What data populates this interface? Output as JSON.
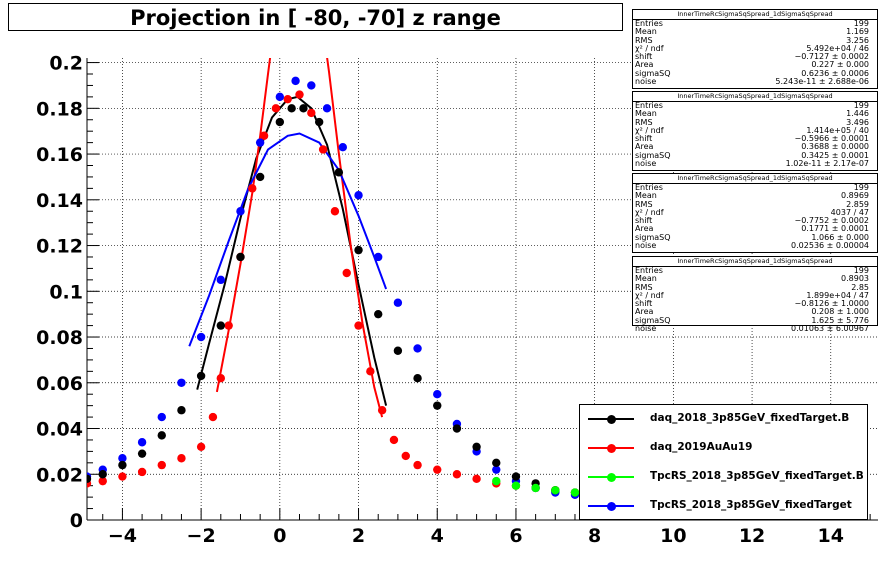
{
  "title": "Projection in [ -80, -70] z range",
  "chart_data": {
    "type": "scatter",
    "x_range": [
      -4.9,
      15.2
    ],
    "y_range": [
      0,
      0.202
    ],
    "x_ticks": [
      -4,
      -2,
      0,
      2,
      4,
      6,
      8,
      10,
      12,
      14
    ],
    "x_tick_labels": [
      "−4",
      "−2",
      "0",
      "2",
      "4",
      "6",
      "8",
      "10",
      "12",
      "14"
    ],
    "y_ticks": [
      0,
      0.02,
      0.04,
      0.06,
      0.08,
      0.1,
      0.12,
      0.14,
      0.16,
      0.18,
      0.2
    ],
    "y_tick_labels": [
      "0",
      "0.02",
      "0.04",
      "0.06",
      "0.08",
      "0.1",
      "0.12",
      "0.14",
      "0.16",
      "0.18",
      "0.2"
    ],
    "grid": true,
    "series": [
      {
        "name": "daq_2018_3p85GeV_fixedTarget.B",
        "color": "#000000",
        "points": [
          [
            -4.9,
            0.018
          ],
          [
            -4.5,
            0.02
          ],
          [
            -4.0,
            0.024
          ],
          [
            -3.5,
            0.029
          ],
          [
            -3.0,
            0.037
          ],
          [
            -2.5,
            0.048
          ],
          [
            -2.0,
            0.063
          ],
          [
            -1.5,
            0.085
          ],
          [
            -1.0,
            0.115
          ],
          [
            -0.5,
            0.15
          ],
          [
            0.0,
            0.174
          ],
          [
            0.3,
            0.18
          ],
          [
            0.6,
            0.18
          ],
          [
            1.0,
            0.174
          ],
          [
            1.5,
            0.152
          ],
          [
            2.0,
            0.118
          ],
          [
            2.5,
            0.09
          ],
          [
            3.0,
            0.074
          ],
          [
            3.5,
            0.062
          ],
          [
            4.0,
            0.05
          ],
          [
            4.5,
            0.04
          ],
          [
            5.0,
            0.032
          ],
          [
            5.5,
            0.025
          ],
          [
            6.0,
            0.019
          ],
          [
            6.5,
            0.016
          ],
          [
            7.0,
            0.013
          ],
          [
            7.5,
            0.012
          ],
          [
            8.0,
            0.011
          ],
          [
            8.5,
            0.01
          ],
          [
            9.0,
            0.009
          ]
        ],
        "fit": [
          [
            -2.1,
            0.057
          ],
          [
            -1.8,
            0.077
          ],
          [
            -1.4,
            0.103
          ],
          [
            -1.0,
            0.132
          ],
          [
            -0.6,
            0.158
          ],
          [
            -0.2,
            0.176
          ],
          [
            0.2,
            0.184
          ],
          [
            0.45,
            0.185
          ],
          [
            0.8,
            0.18
          ],
          [
            1.2,
            0.164
          ],
          [
            1.6,
            0.136
          ],
          [
            2.0,
            0.103
          ],
          [
            2.4,
            0.071
          ],
          [
            2.7,
            0.05
          ]
        ]
      },
      {
        "name": "daq_2019AuAu19",
        "color": "#ff0000",
        "points": [
          [
            -4.9,
            0.016
          ],
          [
            -4.5,
            0.017
          ],
          [
            -4.0,
            0.019
          ],
          [
            -3.5,
            0.021
          ],
          [
            -3.0,
            0.024
          ],
          [
            -2.5,
            0.027
          ],
          [
            -2.0,
            0.032
          ],
          [
            -1.7,
            0.045
          ],
          [
            -1.5,
            0.062
          ],
          [
            -1.3,
            0.085
          ],
          [
            -1.0,
            0.115
          ],
          [
            -0.7,
            0.145
          ],
          [
            -0.4,
            0.168
          ],
          [
            -0.1,
            0.18
          ],
          [
            0.2,
            0.184
          ],
          [
            0.5,
            0.186
          ],
          [
            0.8,
            0.178
          ],
          [
            1.1,
            0.162
          ],
          [
            1.4,
            0.135
          ],
          [
            1.7,
            0.108
          ],
          [
            2.0,
            0.085
          ],
          [
            2.3,
            0.065
          ],
          [
            2.6,
            0.048
          ],
          [
            2.9,
            0.035
          ],
          [
            3.2,
            0.028
          ],
          [
            3.5,
            0.024
          ],
          [
            4.0,
            0.022
          ],
          [
            4.5,
            0.02
          ],
          [
            5.0,
            0.018
          ],
          [
            5.5,
            0.016
          ],
          [
            6.0,
            0.015
          ],
          [
            6.5,
            0.014
          ],
          [
            7.0,
            0.013
          ],
          [
            7.5,
            0.012
          ],
          [
            8.0,
            0.011
          ],
          [
            8.5,
            0.011
          ],
          [
            9.0,
            0.01
          ]
        ],
        "fit": [
          [
            -1.6,
            0.056
          ],
          [
            -1.3,
            0.083
          ],
          [
            -1.0,
            0.112
          ],
          [
            -0.7,
            0.143
          ],
          [
            -0.5,
            0.168
          ],
          [
            -0.3,
            0.195
          ],
          [
            -0.15,
            0.215
          ],
          [
            1.1,
            0.215
          ],
          [
            1.25,
            0.196
          ],
          [
            1.5,
            0.16
          ],
          [
            1.8,
            0.12
          ],
          [
            2.1,
            0.086
          ],
          [
            2.4,
            0.058
          ],
          [
            2.6,
            0.045
          ]
        ]
      },
      {
        "name": "TpcRS_2018_3p85GeV_fixedTarget.B",
        "color": "#00ff00",
        "points": [
          [
            5.5,
            0.017
          ],
          [
            6.0,
            0.015
          ],
          [
            6.5,
            0.014
          ],
          [
            7.0,
            0.013
          ],
          [
            7.5,
            0.012
          ],
          [
            8.0,
            0.012
          ],
          [
            8.5,
            0.011
          ],
          [
            9.0,
            0.011
          ]
        ],
        "fit": []
      },
      {
        "name": "TpcRS_2018_3p85GeV_fixedTarget",
        "color": "#0000ff",
        "points": [
          [
            -4.9,
            0.019
          ],
          [
            -4.5,
            0.022
          ],
          [
            -4.0,
            0.027
          ],
          [
            -3.5,
            0.034
          ],
          [
            -3.0,
            0.045
          ],
          [
            -2.5,
            0.06
          ],
          [
            -2.0,
            0.08
          ],
          [
            -1.5,
            0.105
          ],
          [
            -1.0,
            0.135
          ],
          [
            -0.5,
            0.165
          ],
          [
            0.0,
            0.185
          ],
          [
            0.4,
            0.192
          ],
          [
            0.8,
            0.19
          ],
          [
            1.2,
            0.18
          ],
          [
            1.6,
            0.163
          ],
          [
            2.0,
            0.142
          ],
          [
            2.5,
            0.115
          ],
          [
            3.0,
            0.095
          ],
          [
            3.5,
            0.075
          ],
          [
            4.0,
            0.055
          ],
          [
            4.5,
            0.042
          ],
          [
            5.0,
            0.03
          ],
          [
            5.5,
            0.022
          ],
          [
            6.0,
            0.017
          ],
          [
            6.5,
            0.014
          ],
          [
            7.0,
            0.012
          ],
          [
            7.5,
            0.011
          ],
          [
            8.0,
            0.01
          ],
          [
            8.5,
            0.009
          ],
          [
            9.0,
            0.008
          ]
        ],
        "fit": [
          [
            -2.3,
            0.076
          ],
          [
            -1.8,
            0.098
          ],
          [
            -1.3,
            0.122
          ],
          [
            -0.8,
            0.145
          ],
          [
            -0.3,
            0.162
          ],
          [
            0.2,
            0.168
          ],
          [
            0.5,
            0.169
          ],
          [
            1.0,
            0.165
          ],
          [
            1.5,
            0.153
          ],
          [
            2.0,
            0.133
          ],
          [
            2.4,
            0.115
          ],
          [
            2.7,
            0.101
          ]
        ]
      }
    ]
  },
  "stats_boxes": [
    {
      "header": "InnerTimeRcSigmaSqSpread_1dSigmaSqSpread",
      "rows": [
        [
          "Entries",
          "199"
        ],
        [
          "Mean",
          "1.169"
        ],
        [
          "RMS",
          "3.256"
        ],
        [
          "χ² / ndf",
          "5.492e+04 / 46"
        ],
        [
          "shift",
          "−0.7127 ± 0.0002"
        ],
        [
          "Area",
          "0.227 ± 0.000"
        ],
        [
          "sigmaSQ",
          "0.6236 ± 0.0006"
        ],
        [
          "noise",
          "5.243e-11 ± 2.688e-06"
        ]
      ]
    },
    {
      "header": "InnerTimeRcSigmaSqSpread_1dSigmaSqSpread",
      "rows": [
        [
          "Entries",
          "199"
        ],
        [
          "Mean",
          "1.446"
        ],
        [
          "RMS",
          "3.496"
        ],
        [
          "χ² / ndf",
          "1.414e+05 / 40"
        ],
        [
          "shift",
          "−0.5966 ± 0.0001"
        ],
        [
          "Area",
          "0.3688 ± 0.0000"
        ],
        [
          "sigmaSQ",
          "0.3425 ± 0.0001"
        ],
        [
          "noise",
          "1.02e-11 ± 2.17e-07"
        ]
      ]
    },
    {
      "header": "InnerTimeRcSigmaSqSpread_1dSigmaSqSpread",
      "rows": [
        [
          "Entries",
          "199"
        ],
        [
          "Mean",
          "0.8969"
        ],
        [
          "RMS",
          "2.859"
        ],
        [
          "χ² / ndf",
          "4037 / 47"
        ],
        [
          "shift",
          "−0.7752 ± 0.0002"
        ],
        [
          "Area",
          "0.1771 ± 0.0001"
        ],
        [
          "sigmaSQ",
          "1.066 ± 0.000"
        ],
        [
          "noise",
          "0.02536 ± 0.00004"
        ]
      ]
    },
    {
      "header": "InnerTimeRcSigmaSqSpread_1dSigmaSqSpread",
      "rows": [
        [
          "Entries",
          "199"
        ],
        [
          "Mean",
          "0.8903"
        ],
        [
          "RMS",
          "2.85"
        ],
        [
          "χ² / ndf",
          "1.899e+04 / 47"
        ],
        [
          "shift",
          "−0.8126 ± 1.0000"
        ],
        [
          "Area",
          "0.208 ± 1.000"
        ],
        [
          "sigmaSQ",
          "1.625 ± 5.776"
        ],
        [
          "noise",
          "0.01063 ± 6.00967"
        ]
      ]
    }
  ],
  "legend": {
    "entries": [
      {
        "label": "daq_2018_3p85GeV_fixedTarget.B",
        "color": "#000000"
      },
      {
        "label": "daq_2019AuAu19",
        "color": "#ff0000"
      },
      {
        "label": "TpcRS_2018_3p85GeV_fixedTarget.B",
        "color": "#00ff00"
      },
      {
        "label": "TpcRS_2018_3p85GeV_fixedTarget",
        "color": "#0000ff"
      }
    ]
  }
}
